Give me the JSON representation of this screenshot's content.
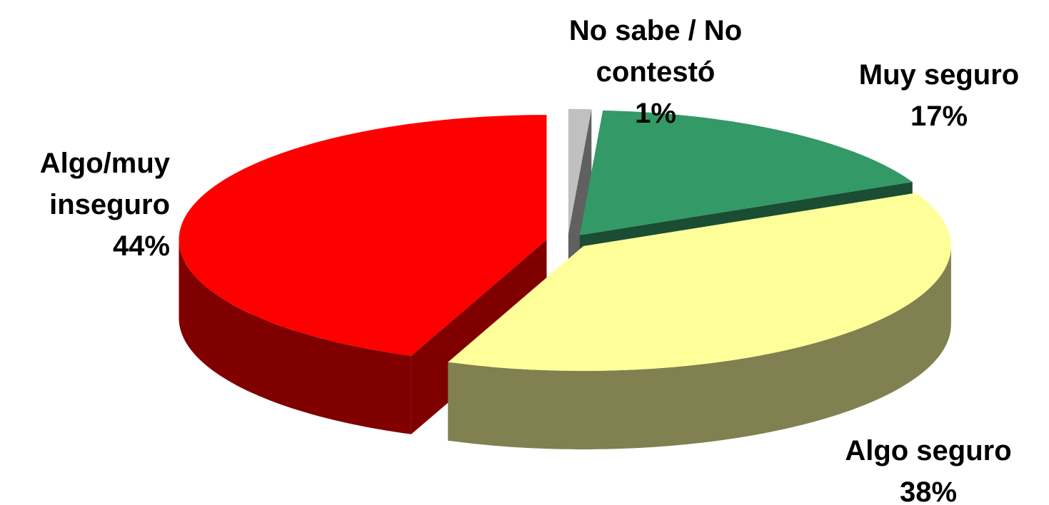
{
  "chart_data": {
    "type": "pie",
    "categories": [
      "No sabe / No contestó",
      "Muy seguro",
      "Algo seguro",
      "Algo/muy inseguro"
    ],
    "values": [
      1,
      17,
      38,
      44
    ],
    "value_labels": [
      "1%",
      "17%",
      "38%",
      "44%"
    ],
    "colors": [
      "#c0c0c0",
      "#339966",
      "#ffff99",
      "#ff0000"
    ],
    "side_colors": [
      "#606060",
      "#1a4d33",
      "#808050",
      "#800000"
    ]
  }
}
